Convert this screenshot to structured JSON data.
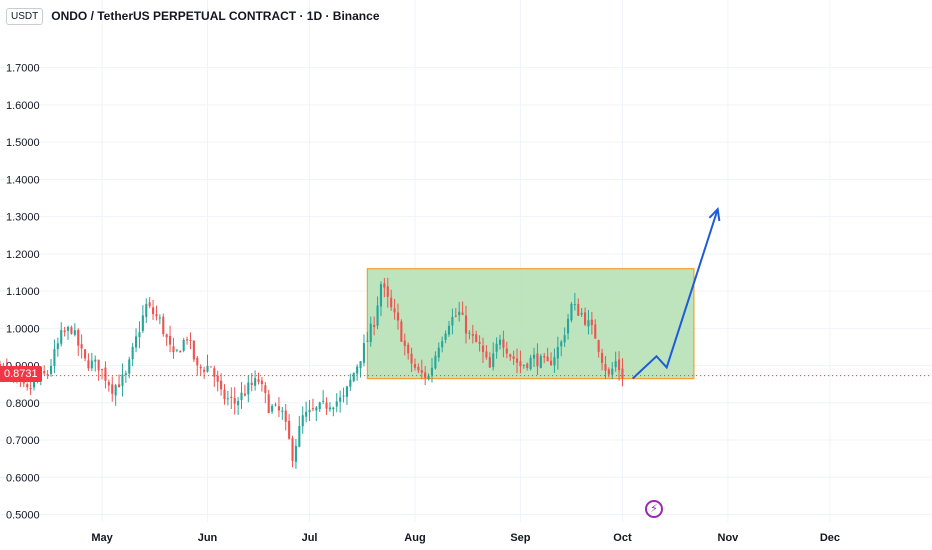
{
  "header": {
    "currency": "USDT",
    "symbol_title": "ONDO / TetherUS PERPETUAL CONTRACT · 1D · Binance"
  },
  "price_tag": "0.8731",
  "event_icon": "lightning-bolt-icon",
  "colors": {
    "up": "#26a69a",
    "down": "#ef5350",
    "range_fill": "#b3dfb3",
    "range_border": "#f0a030",
    "projection": "#1e5bd8",
    "price_line": "#f23645",
    "grid": "#f0f3fa"
  },
  "chart_data": {
    "type": "candlestick",
    "y_axis": {
      "ylim": [
        0.48,
        1.86
      ],
      "ticks": [
        0.5,
        0.6,
        0.7,
        0.8,
        0.9,
        1.0,
        1.1,
        1.2,
        1.3,
        1.4,
        1.5,
        1.6,
        1.7
      ],
      "tick_labels": [
        "0.5000",
        "0.6000",
        "0.7000",
        "0.8000",
        "0.9000",
        "1.0000",
        "1.1000",
        "1.2000",
        "1.3000",
        "1.4000",
        "1.5000",
        "1.6000",
        "1.7000"
      ]
    },
    "x_axis": {
      "start": "2024-04-01",
      "end": "2024-12-31",
      "ticks": [
        "2024-05-01",
        "2024-06-01",
        "2024-07-01",
        "2024-08-01",
        "2024-09-01",
        "2024-10-01",
        "2024-11-01",
        "2024-12-01"
      ],
      "tick_labels": [
        "May",
        "Jun",
        "Jul",
        "Aug",
        "Sep",
        "Oct",
        "Nov",
        "Dec"
      ]
    },
    "grid": true,
    "last_price": 0.8731,
    "range_box": {
      "start": "2024-07-18",
      "end": "2024-10-22",
      "low": 0.865,
      "high": 1.16
    },
    "projection_arrow": [
      {
        "date": "2024-10-04",
        "price": 0.865
      },
      {
        "date": "2024-10-11",
        "price": 0.925
      },
      {
        "date": "2024-10-14",
        "price": 0.895
      },
      {
        "date": "2024-10-29",
        "price": 1.32
      }
    ],
    "anchors": [
      [
        "2024-04-01",
        0.9
      ],
      [
        "2024-04-05",
        0.86
      ],
      [
        "2024-04-09",
        0.83
      ],
      [
        "2024-04-12",
        0.86
      ],
      [
        "2024-04-15",
        0.88
      ],
      [
        "2024-04-19",
        0.98
      ],
      [
        "2024-04-22",
        1.0
      ],
      [
        "2024-04-26",
        0.91
      ],
      [
        "2024-04-30",
        0.9
      ],
      [
        "2024-05-04",
        0.84
      ],
      [
        "2024-05-08",
        0.87
      ],
      [
        "2024-05-11",
        0.97
      ],
      [
        "2024-05-14",
        1.06
      ],
      [
        "2024-05-18",
        1.02
      ],
      [
        "2024-05-22",
        0.92
      ],
      [
        "2024-05-26",
        0.98
      ],
      [
        "2024-05-29",
        0.89
      ],
      [
        "2024-06-02",
        0.9
      ],
      [
        "2024-06-05",
        0.82
      ],
      [
        "2024-06-09",
        0.8
      ],
      [
        "2024-06-13",
        0.84
      ],
      [
        "2024-06-16",
        0.86
      ],
      [
        "2024-06-19",
        0.79
      ],
      [
        "2024-06-23",
        0.77
      ],
      [
        "2024-06-26",
        0.66
      ],
      [
        "2024-06-29",
        0.76
      ],
      [
        "2024-07-03",
        0.78
      ],
      [
        "2024-07-07",
        0.8
      ],
      [
        "2024-07-11",
        0.81
      ],
      [
        "2024-07-14",
        0.88
      ],
      [
        "2024-07-18",
        0.97
      ],
      [
        "2024-07-20",
        1.02
      ],
      [
        "2024-07-22",
        1.12
      ],
      [
        "2024-07-25",
        1.05
      ],
      [
        "2024-07-27",
        1.01
      ],
      [
        "2024-07-30",
        0.92
      ],
      [
        "2024-08-02",
        0.88
      ],
      [
        "2024-08-05",
        0.87
      ],
      [
        "2024-08-08",
        0.96
      ],
      [
        "2024-08-11",
        1.02
      ],
      [
        "2024-08-14",
        1.04
      ],
      [
        "2024-08-17",
        0.98
      ],
      [
        "2024-08-20",
        0.95
      ],
      [
        "2024-08-23",
        0.89
      ],
      [
        "2024-08-26",
        0.98
      ],
      [
        "2024-08-29",
        0.93
      ],
      [
        "2024-09-01",
        0.9
      ],
      [
        "2024-09-05",
        0.92
      ],
      [
        "2024-09-09",
        0.9
      ],
      [
        "2024-09-13",
        0.96
      ],
      [
        "2024-09-16",
        1.06
      ],
      [
        "2024-09-19",
        1.04
      ],
      [
        "2024-09-23",
        0.98
      ],
      [
        "2024-09-25",
        0.92
      ],
      [
        "2024-09-27",
        0.87
      ],
      [
        "2024-09-29",
        0.91
      ],
      [
        "2024-10-01",
        0.875
      ]
    ]
  }
}
